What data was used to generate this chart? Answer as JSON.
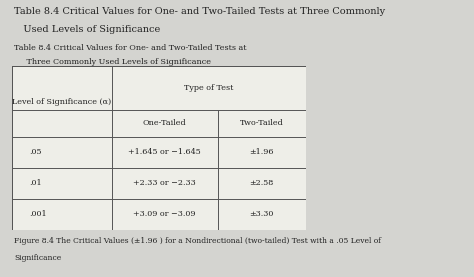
{
  "title_line1": "Table 8.4 Critical Values for One- and Two-Tailed Tests at Three Commonly",
  "title_line2": "   Used Levels of Significance",
  "subtitle_line1": "Table 8.4 Critical Values for One- and Two-Tailed Tests at",
  "subtitle_line2": "     Three Commonly Used Levels of Significance",
  "col_header_span": "Type of Test",
  "col_header_left": "Level of Significance (α)",
  "col_header_one": "One-Tailed",
  "col_header_two": "Two-Tailed",
  "rows": [
    [
      ".05",
      "+1.645 or −1.645",
      "±1.96"
    ],
    [
      ".01",
      "+2.33 or −2.33",
      "±2.58"
    ],
    [
      ".001",
      "+3.09 or −3.09",
      "±3.30"
    ]
  ],
  "caption_line1": "Figure 8.4 The Critical Values (±1.96 ) for a Nondirectional (two-tailed) Test with a .05 Level of",
  "caption_line2": "Significance",
  "bg_color": "#d4d4d0",
  "table_bg": "#eeeee8",
  "border_color": "#555555",
  "text_color": "#222222",
  "title_fontsize": 7.0,
  "subtitle_fontsize": 5.8,
  "table_fontsize": 5.8,
  "caption_fontsize": 5.5
}
